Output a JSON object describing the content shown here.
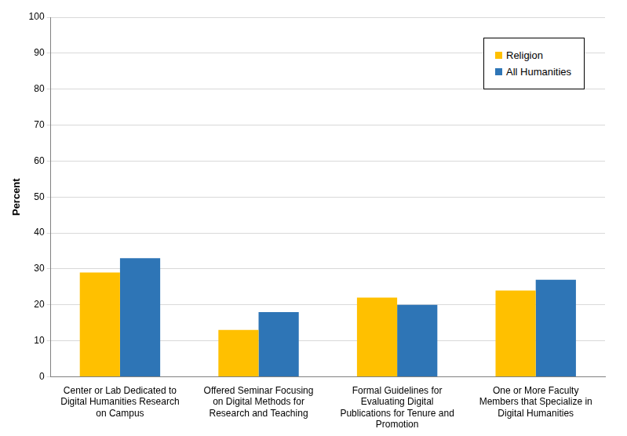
{
  "chart_data": {
    "type": "bar",
    "y_label": "Percent",
    "categories": [
      [
        "Center or Lab Dedicated to",
        "Digital Humanities Research",
        "on Campus"
      ],
      [
        "Offered Seminar Focusing",
        "on Digital Methods for",
        "Research and Teaching"
      ],
      [
        "Formal Guidelines for",
        "Evaluating Digital",
        "Publications for Tenure and",
        "Promotion"
      ],
      [
        "One or More Faculty",
        "Members that Specialize in",
        "Digital Humanities"
      ]
    ],
    "series": [
      {
        "name": "Religion",
        "color": "#ffc000",
        "values": [
          29,
          13,
          22,
          24
        ]
      },
      {
        "name": "All Humanities",
        "color": "#2e75b6",
        "values": [
          33,
          18,
          20,
          27
        ]
      }
    ],
    "ylim": [
      0,
      100
    ],
    "yticks": [
      0,
      10,
      20,
      30,
      40,
      50,
      60,
      70,
      80,
      90,
      100
    ],
    "grid": true,
    "legend": "top-right"
  }
}
